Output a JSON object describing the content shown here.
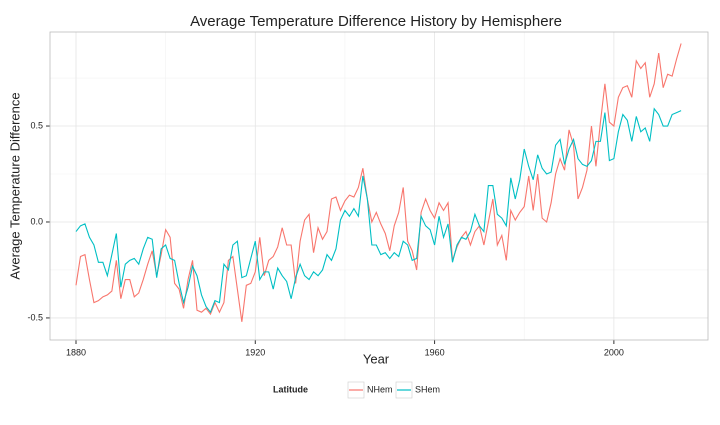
{
  "chart_data": {
    "type": "line",
    "title": "Average Temperature Difference History by Hemisphere",
    "x_label": "Year",
    "y_label": "Average Temperature Difference",
    "legend_title": "Latitude",
    "legend_position": "bottom",
    "grid": true,
    "x": [
      1880,
      1881,
      1882,
      1883,
      1884,
      1885,
      1886,
      1887,
      1888,
      1889,
      1890,
      1891,
      1892,
      1893,
      1894,
      1895,
      1896,
      1897,
      1898,
      1899,
      1900,
      1901,
      1902,
      1903,
      1904,
      1905,
      1906,
      1907,
      1908,
      1909,
      1910,
      1911,
      1912,
      1913,
      1914,
      1915,
      1916,
      1917,
      1918,
      1919,
      1920,
      1921,
      1922,
      1923,
      1924,
      1925,
      1926,
      1927,
      1928,
      1929,
      1930,
      1931,
      1932,
      1933,
      1934,
      1935,
      1936,
      1937,
      1938,
      1939,
      1940,
      1941,
      1942,
      1943,
      1944,
      1945,
      1946,
      1947,
      1948,
      1949,
      1950,
      1951,
      1952,
      1953,
      1954,
      1955,
      1956,
      1957,
      1958,
      1959,
      1960,
      1961,
      1962,
      1963,
      1964,
      1965,
      1966,
      1967,
      1968,
      1969,
      1970,
      1971,
      1972,
      1973,
      1974,
      1975,
      1976,
      1977,
      1978,
      1979,
      1980,
      1981,
      1982,
      1983,
      1984,
      1985,
      1986,
      1987,
      1988,
      1989,
      1990,
      1991,
      1992,
      1993,
      1994,
      1995,
      1996,
      1997,
      1998,
      1999,
      2000,
      2001,
      2002,
      2003,
      2004,
      2005,
      2006,
      2007,
      2008,
      2009,
      2010,
      2011,
      2012,
      2013,
      2014,
      2015
    ],
    "series": [
      {
        "name": "NHem",
        "color": "#F8766D",
        "values": [
          -0.33,
          -0.18,
          -0.17,
          -0.3,
          -0.42,
          -0.41,
          -0.39,
          -0.38,
          -0.36,
          -0.2,
          -0.4,
          -0.3,
          -0.3,
          -0.39,
          -0.37,
          -0.3,
          -0.22,
          -0.15,
          -0.28,
          -0.17,
          -0.04,
          -0.08,
          -0.32,
          -0.35,
          -0.45,
          -0.3,
          -0.2,
          -0.46,
          -0.47,
          -0.45,
          -0.48,
          -0.42,
          -0.47,
          -0.42,
          -0.2,
          -0.18,
          -0.35,
          -0.52,
          -0.33,
          -0.32,
          -0.26,
          -0.08,
          -0.28,
          -0.2,
          -0.18,
          -0.13,
          -0.03,
          -0.12,
          -0.12,
          -0.32,
          -0.1,
          0.01,
          0.04,
          -0.16,
          -0.03,
          -0.09,
          -0.05,
          0.12,
          0.13,
          0.06,
          0.11,
          0.14,
          0.13,
          0.18,
          0.28,
          0.12,
          0.0,
          0.05,
          -0.01,
          -0.06,
          -0.15,
          -0.02,
          0.05,
          0.18,
          -0.1,
          -0.15,
          -0.25,
          0.05,
          0.12,
          0.06,
          0.02,
          0.1,
          0.06,
          0.1,
          -0.2,
          -0.13,
          -0.08,
          -0.05,
          -0.12,
          -0.05,
          -0.02,
          -0.12,
          0.0,
          0.12,
          -0.12,
          -0.07,
          -0.2,
          0.06,
          0.01,
          0.05,
          0.08,
          0.24,
          0.06,
          0.25,
          0.02,
          0.0,
          0.1,
          0.25,
          0.33,
          0.27,
          0.48,
          0.4,
          0.12,
          0.18,
          0.27,
          0.5,
          0.29,
          0.52,
          0.72,
          0.52,
          0.5,
          0.65,
          0.7,
          0.71,
          0.65,
          0.84,
          0.8,
          0.83,
          0.65,
          0.72,
          0.88,
          0.7,
          0.77,
          0.76,
          0.85,
          0.93
        ]
      },
      {
        "name": "SHem",
        "color": "#00BFC4",
        "values": [
          -0.05,
          -0.02,
          -0.01,
          -0.08,
          -0.12,
          -0.21,
          -0.21,
          -0.28,
          -0.17,
          -0.06,
          -0.34,
          -0.22,
          -0.2,
          -0.19,
          -0.22,
          -0.14,
          -0.08,
          -0.09,
          -0.29,
          -0.14,
          -0.12,
          -0.19,
          -0.2,
          -0.32,
          -0.42,
          -0.34,
          -0.23,
          -0.28,
          -0.38,
          -0.44,
          -0.47,
          -0.41,
          -0.42,
          -0.22,
          -0.25,
          -0.12,
          -0.1,
          -0.29,
          -0.28,
          -0.19,
          -0.1,
          -0.3,
          -0.26,
          -0.26,
          -0.35,
          -0.24,
          -0.28,
          -0.31,
          -0.4,
          -0.29,
          -0.22,
          -0.28,
          -0.3,
          -0.26,
          -0.28,
          -0.25,
          -0.17,
          -0.2,
          -0.14,
          0.01,
          0.06,
          0.03,
          0.07,
          0.03,
          0.24,
          0.12,
          -0.12,
          -0.12,
          -0.17,
          -0.16,
          -0.19,
          -0.16,
          -0.18,
          -0.1,
          -0.12,
          -0.2,
          -0.19,
          0.03,
          -0.02,
          -0.04,
          -0.12,
          0.03,
          -0.08,
          -0.01,
          -0.21,
          -0.12,
          -0.08,
          -0.09,
          -0.05,
          0.04,
          -0.02,
          -0.05,
          0.19,
          0.19,
          0.04,
          0.02,
          -0.02,
          0.23,
          0.12,
          0.22,
          0.38,
          0.29,
          0.22,
          0.35,
          0.28,
          0.25,
          0.26,
          0.4,
          0.43,
          0.3,
          0.38,
          0.43,
          0.33,
          0.3,
          0.29,
          0.32,
          0.42,
          0.42,
          0.57,
          0.32,
          0.33,
          0.47,
          0.56,
          0.53,
          0.42,
          0.55,
          0.47,
          0.49,
          0.42,
          0.59,
          0.56,
          0.5,
          0.5,
          0.56,
          0.57,
          0.58
        ]
      }
    ],
    "xlim": [
      1874.2,
      2021
    ],
    "ylim": [
      -0.615,
      0.99
    ],
    "xticks": [
      1880,
      1920,
      1960,
      2000
    ],
    "yticks": [
      -0.5,
      {
        "value": 0,
        "label": "0.0"
      },
      0.5
    ],
    "x_minor_grid": [
      1900,
      1940,
      1980
    ],
    "y_minor_grid": [
      -0.25,
      0.25,
      0.75
    ]
  }
}
